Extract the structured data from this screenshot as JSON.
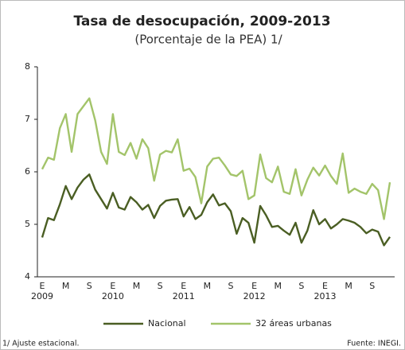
{
  "chart_data": {
    "type": "line",
    "title": "Tasa de desocupación, 2009-2013",
    "subtitle": "(Porcentaje de la PEA) 1/",
    "footnote": "1/ Ajuste estacional.",
    "source": "Fuente: INEGI.",
    "categories": [
      "E",
      null,
      null,
      null,
      "M",
      null,
      null,
      null,
      "S",
      null,
      null,
      null,
      "E",
      null,
      null,
      null,
      "M",
      null,
      null,
      null,
      "S",
      null,
      null,
      null,
      "E",
      null,
      null,
      null,
      "M",
      null,
      null,
      null,
      "S",
      null,
      null,
      null,
      "E",
      null,
      null,
      null,
      "M",
      null,
      null,
      null,
      "S",
      null,
      null,
      null,
      "E",
      null,
      null,
      null,
      "M",
      null,
      null,
      null,
      "S",
      null,
      null,
      null
    ],
    "year_labels": [
      "2009",
      null,
      null,
      null,
      null,
      null,
      null,
      null,
      null,
      null,
      null,
      null,
      "2010",
      null,
      null,
      null,
      null,
      null,
      null,
      null,
      null,
      null,
      null,
      null,
      "2011",
      null,
      null,
      null,
      null,
      null,
      null,
      null,
      null,
      null,
      null,
      null,
      "2012",
      null,
      null,
      null,
      null,
      null,
      null,
      null,
      null,
      null,
      null,
      null,
      "2013",
      null,
      null,
      null,
      null,
      null,
      null,
      null,
      null,
      null,
      null,
      null
    ],
    "series": [
      {
        "name": "Nacional",
        "color": "#4a5e23",
        "values": [
          4.75,
          5.12,
          5.08,
          5.38,
          5.73,
          5.48,
          5.7,
          5.85,
          5.95,
          5.66,
          5.48,
          5.3,
          5.6,
          5.32,
          5.28,
          5.52,
          5.42,
          5.28,
          5.37,
          5.12,
          5.35,
          5.45,
          5.47,
          5.48,
          5.15,
          5.33,
          5.1,
          5.18,
          5.42,
          5.57,
          5.36,
          5.4,
          5.25,
          4.82,
          5.12,
          5.03,
          4.65,
          5.35,
          5.17,
          4.95,
          4.97,
          4.88,
          4.8,
          5.03,
          4.65,
          4.88,
          5.27,
          5.0,
          5.1,
          4.92,
          5.0,
          5.1,
          5.07,
          5.03,
          4.95,
          4.83,
          4.9,
          4.86,
          4.6,
          4.76
        ]
      },
      {
        "name": "32 áreas urbanas",
        "color": "#a3c46a",
        "values": [
          6.05,
          6.27,
          6.23,
          6.83,
          7.1,
          6.38,
          7.1,
          7.25,
          7.4,
          6.98,
          6.38,
          6.15,
          7.1,
          6.38,
          6.32,
          6.55,
          6.25,
          6.62,
          6.45,
          5.83,
          6.33,
          6.4,
          6.37,
          6.62,
          6.02,
          6.06,
          5.9,
          5.4,
          6.1,
          6.25,
          6.27,
          6.12,
          5.95,
          5.92,
          6.02,
          5.48,
          5.55,
          6.33,
          5.88,
          5.8,
          6.1,
          5.62,
          5.58,
          6.05,
          5.55,
          5.85,
          6.08,
          5.93,
          6.12,
          5.92,
          5.77,
          6.35,
          5.6,
          5.68,
          5.62,
          5.58,
          5.77,
          5.65,
          5.1,
          5.8
        ]
      }
    ],
    "ylim": [
      4,
      8
    ],
    "yticks": [
      4,
      5,
      6,
      7,
      8
    ],
    "legend": "bottom"
  }
}
